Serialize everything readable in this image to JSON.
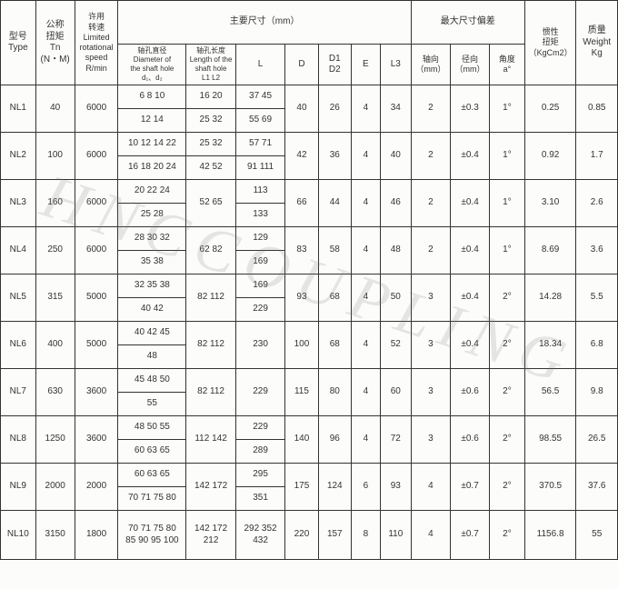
{
  "watermark": "HNCCOUPLING",
  "headers": {
    "type": "型号\nType",
    "tn": "公称\n扭矩\nTn\n(N・M)",
    "rpm": "许用\n转速\nLimited\nrotational\nspeed\nR/min",
    "main_dim": "主要尺寸（mm）",
    "max_dev": "最大尺寸偏差",
    "inertia": "惯性\n扭矩\n（KgCm2）",
    "weight": "质量\nWeight\nKg",
    "shaft_dia": "轴孔直径\nDiameter of\nthe shaft hole\nd₁、d₂",
    "shaft_len": "轴孔长度\nLength of the\nshaft hole\nL1  L2",
    "L": "L",
    "D": "D",
    "D1": "D1\nD2",
    "E": "E",
    "L3": "L3",
    "axial": "轴向\n（mm）",
    "radial": "径向\n（mm）",
    "angle": "角度\na°"
  },
  "rows": [
    {
      "type": "NL1",
      "tn": "40",
      "rpm": "6000",
      "d1": "6 8 10",
      "d2": "12 14",
      "l1": "16 20",
      "l2": "25 32",
      "L1": "37 45",
      "L2": "55 69",
      "D": "40",
      "D1": "26",
      "E": "4",
      "L3": "34",
      "ax": "2",
      "rad": "±0.3",
      "ang": "1°",
      "inert": "0.25",
      "wt": "0.85"
    },
    {
      "type": "NL2",
      "tn": "100",
      "rpm": "6000",
      "d1": "10 12 14 22",
      "d2": "16 18 20 24",
      "l1": "25 32",
      "l2": "42 52",
      "L1": "57 71",
      "L2": "91 111",
      "D": "42",
      "D1": "36",
      "E": "4",
      "L3": "40",
      "ax": "2",
      "rad": "±0.4",
      "ang": "1°",
      "inert": "0.92",
      "wt": "1.7"
    },
    {
      "type": "NL3",
      "tn": "160",
      "rpm": "6000",
      "d1": "20 22 24",
      "d2": "25 28",
      "l12": "52 65",
      "L1": "113",
      "L2": "133",
      "D": "66",
      "D1": "44",
      "E": "4",
      "L3": "46",
      "ax": "2",
      "rad": "±0.4",
      "ang": "1°",
      "inert": "3.10",
      "wt": "2.6"
    },
    {
      "type": "NL4",
      "tn": "250",
      "rpm": "6000",
      "d1": "28 30 32",
      "d2": "35 38",
      "l12": "62 82",
      "L1": "129",
      "L2": "169",
      "D": "83",
      "D1": "58",
      "E": "4",
      "L3": "48",
      "ax": "2",
      "rad": "±0.4",
      "ang": "1°",
      "inert": "8.69",
      "wt": "3.6"
    },
    {
      "type": "NL5",
      "tn": "315",
      "rpm": "5000",
      "d1": "32 35 38",
      "d2": "40 42",
      "l12": "82 112",
      "L1": "169",
      "L2": "229",
      "D": "93",
      "D1": "68",
      "E": "4",
      "L3": "50",
      "ax": "3",
      "rad": "±0.4",
      "ang": "2°",
      "inert": "14.28",
      "wt": "5.5"
    },
    {
      "type": "NL6",
      "tn": "400",
      "rpm": "5000",
      "d1": "40 42 45",
      "d2": "48",
      "l12": "82 112",
      "L12": "230",
      "D": "100",
      "D1": "68",
      "E": "4",
      "L3": "52",
      "ax": "3",
      "rad": "±0.4",
      "ang": "2°",
      "inert": "18.34",
      "wt": "6.8"
    },
    {
      "type": "NL7",
      "tn": "630",
      "rpm": "3600",
      "d1": "45 48 50",
      "d2": "55",
      "l12": "82 112",
      "L12": "229",
      "D": "115",
      "D1": "80",
      "E": "4",
      "L3": "60",
      "ax": "3",
      "rad": "±0.6",
      "ang": "2°",
      "inert": "56.5",
      "wt": "9.8"
    },
    {
      "type": "NL8",
      "tn": "1250",
      "rpm": "3600",
      "d1": "48 50 55",
      "d2": "60 63 65",
      "l12": "112 142",
      "L1": "229",
      "L2": "289",
      "D": "140",
      "D1": "96",
      "E": "4",
      "L3": "72",
      "ax": "3",
      "rad": "±0.6",
      "ang": "2°",
      "inert": "98.55",
      "wt": "26.5"
    },
    {
      "type": "NL9",
      "tn": "2000",
      "rpm": "2000",
      "d1": "60 63 65",
      "d2": "70 71 75 80",
      "l12": "142 172",
      "L1": "295",
      "L2": "351",
      "D": "175",
      "D1": "124",
      "E": "6",
      "L3": "93",
      "ax": "4",
      "rad": "±0.7",
      "ang": "2°",
      "inert": "370.5",
      "wt": "37.6"
    },
    {
      "type": "NL10",
      "tn": "3150",
      "rpm": "1800",
      "dAll": "70 71 75 80\n85 90 95 100",
      "lAll": "142 172\n212",
      "LAll": "292 352\n432",
      "D": "220",
      "D1": "157",
      "E": "8",
      "L3": "110",
      "ax": "4",
      "rad": "±0.7",
      "ang": "2°",
      "inert": "1156.8",
      "wt": "55"
    }
  ]
}
